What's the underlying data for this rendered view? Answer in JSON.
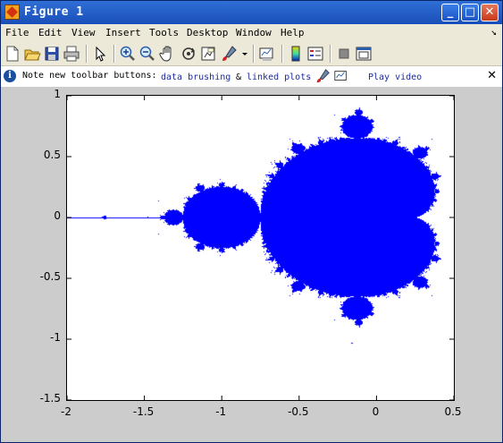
{
  "window": {
    "title": "Figure 1"
  },
  "titlebar_buttons": [
    {
      "icon": "minimize-icon",
      "glyph": "_"
    },
    {
      "icon": "maximize-icon",
      "glyph": "□"
    },
    {
      "icon": "close-icon",
      "glyph": "✕"
    }
  ],
  "menu": {
    "items": [
      {
        "label": "File"
      },
      {
        "label": "Edit"
      },
      {
        "label": "View"
      },
      {
        "label": "Insert"
      },
      {
        "label": "Tools"
      },
      {
        "label": "Desktop"
      },
      {
        "label": "Window"
      },
      {
        "label": "Help"
      }
    ],
    "dock_arrow": "↘"
  },
  "toolbar": {
    "tools": [
      "new-figure-icon",
      "open-file-icon",
      "save-icon",
      "print-icon",
      "edit-plot-arrow-icon",
      "zoom-in-icon",
      "zoom-out-icon",
      "pan-hand-icon",
      "rotate-3d-icon",
      "data-cursor-icon",
      "brush-icon",
      "brush-dropdown-icon",
      "link-plot-icon",
      "colorbar-icon",
      "legend-icon",
      "hide-plot-tools-icon",
      "show-plot-tools-icon"
    ]
  },
  "infobar": {
    "text": "Note new toolbar buttons:",
    "link1": "data brushing",
    "amp": "&",
    "link2": "linked plots",
    "video": "Play video",
    "close": "✕"
  },
  "chart_data": {
    "type": "scatter",
    "title": "",
    "xlabel": "",
    "ylabel": "",
    "xlim": [
      -2,
      0.5
    ],
    "ylim": [
      -1.5,
      1
    ],
    "xticks": [
      "-2",
      "-1.5",
      "-1",
      "-0.5",
      "0",
      "0.5"
    ],
    "yticks": [
      "1",
      "0.5",
      "0",
      "-0.5",
      "-1",
      "-1.5"
    ],
    "color": "#0000ff",
    "series": [
      {
        "description_points": "points c in the complex plane whose orbit under z^2+c stays bounded"
      }
    ],
    "grid": false
  }
}
